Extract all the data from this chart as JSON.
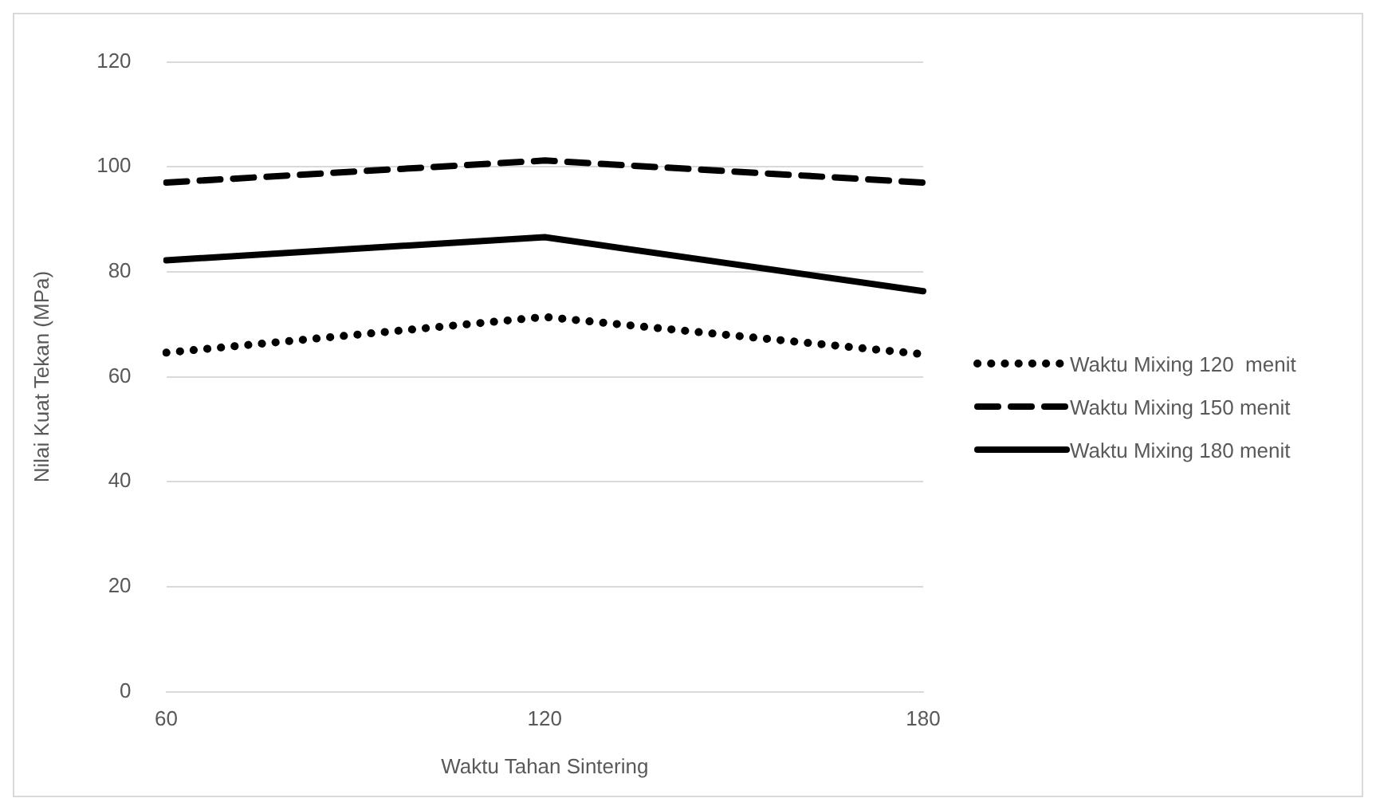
{
  "chart_data": {
    "type": "line",
    "xlabel": "Waktu Tahan Sintering",
    "ylabel": "Nilai Kuat Tekan (MPa)",
    "categories": [
      "60",
      "120",
      "180"
    ],
    "series": [
      {
        "name": "Waktu Mixing 120  menit",
        "color": "#000000",
        "line_style": "dotted",
        "values": [
          64.6,
          71.4,
          64.3
        ]
      },
      {
        "name": "Waktu Mixing 150 menit",
        "color": "#000000",
        "line_style": "dashed",
        "values": [
          97,
          101.2,
          97
        ]
      },
      {
        "name": "Waktu Mixing 180 menit",
        "color": "#000000",
        "line_style": "solid",
        "values": [
          82.2,
          86.6,
          76.3
        ]
      }
    ],
    "ylim": [
      0,
      120
    ],
    "yticks": [
      0,
      20,
      40,
      60,
      80,
      100,
      120
    ],
    "grid": "y",
    "legend": "right"
  }
}
